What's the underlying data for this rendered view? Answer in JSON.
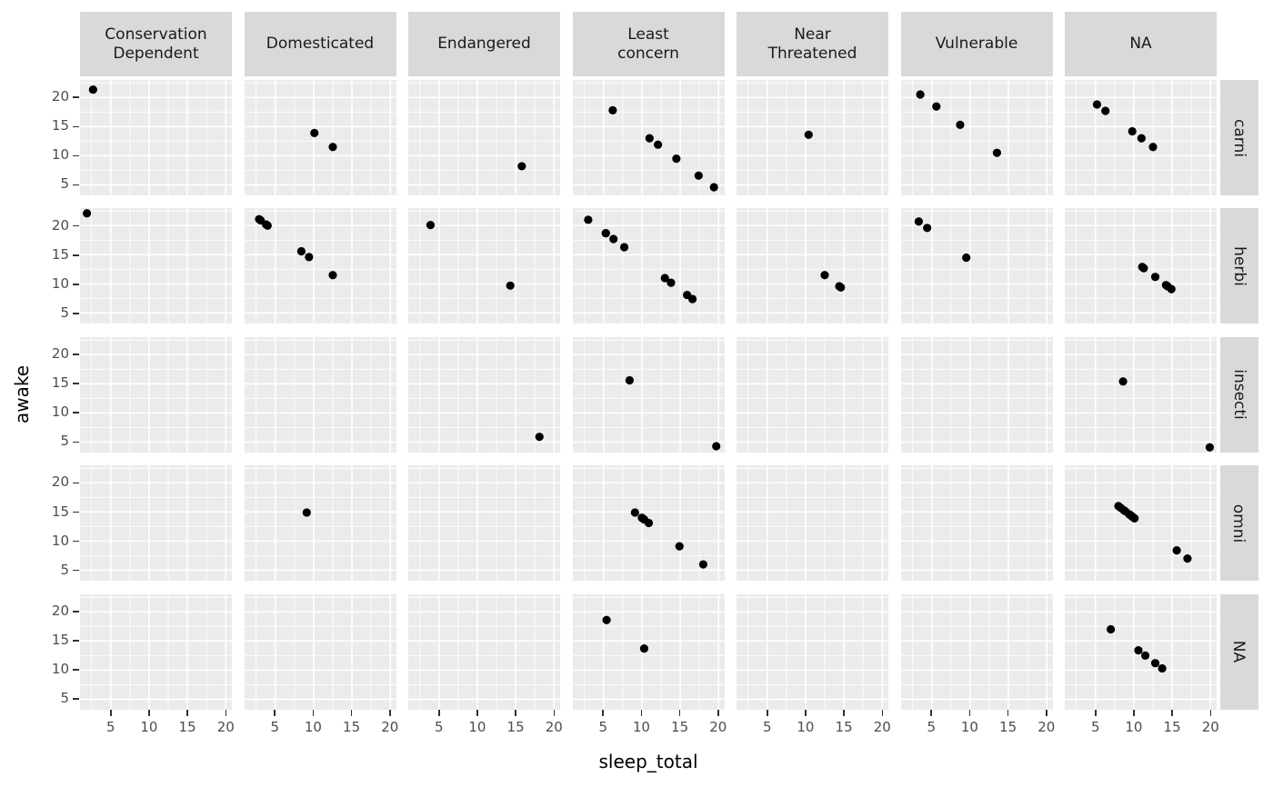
{
  "chart_data": {
    "type": "scatter",
    "title": "",
    "xlabel": "sleep_total",
    "ylabel": "awake",
    "facet": {
      "col_var": "conservation",
      "row_var": "vore"
    },
    "legend": "none",
    "grid": "major-and-minor-white-on-grey",
    "x_ticks": [
      5,
      10,
      15,
      20
    ],
    "y_ticks": [
      5,
      10,
      15,
      20
    ],
    "x_minor": [
      2.5,
      7.5,
      12.5,
      17.5
    ],
    "y_minor": [
      7.5,
      12.5,
      17.5,
      22.5
    ],
    "x_domain": [
      1.0,
      20.8
    ],
    "y_domain": [
      3.2,
      23.0
    ],
    "col_labels": [
      [
        "Conservation",
        "Dependent"
      ],
      [
        "Domesticated"
      ],
      [
        "Endangered"
      ],
      [
        "Least",
        "concern"
      ],
      [
        "Near",
        "Threatened"
      ],
      [
        "Vulnerable"
      ],
      [
        "NA"
      ]
    ],
    "row_labels": [
      "carni",
      "herbi",
      "insecti",
      "omni",
      "NA"
    ],
    "panels": [
      {
        "row": "carni",
        "col": "Conservation Dependent",
        "points": [
          [
            2.7,
            21.35
          ]
        ]
      },
      {
        "row": "carni",
        "col": "Domesticated",
        "points": [
          [
            10.1,
            13.9
          ],
          [
            12.5,
            11.5
          ]
        ]
      },
      {
        "row": "carni",
        "col": "Endangered",
        "points": [
          [
            15.8,
            8.2
          ]
        ]
      },
      {
        "row": "carni",
        "col": "Least concern",
        "points": [
          [
            6.2,
            17.8
          ],
          [
            11.0,
            13.0
          ],
          [
            12.1,
            11.9
          ],
          [
            14.5,
            9.5
          ],
          [
            17.4,
            6.6
          ],
          [
            19.4,
            4.6
          ]
        ]
      },
      {
        "row": "carni",
        "col": "Near Threatened",
        "points": [
          [
            10.4,
            13.6
          ]
        ]
      },
      {
        "row": "carni",
        "col": "Vulnerable",
        "points": [
          [
            3.5,
            20.5
          ],
          [
            5.6,
            18.45
          ],
          [
            8.7,
            15.3
          ],
          [
            13.5,
            10.5
          ]
        ]
      },
      {
        "row": "carni",
        "col": "NA",
        "points": [
          [
            5.2,
            18.8
          ],
          [
            6.3,
            17.7
          ],
          [
            9.8,
            14.2
          ],
          [
            11.0,
            13.0
          ],
          [
            12.5,
            11.5
          ]
        ]
      },
      {
        "row": "herbi",
        "col": "Conservation Dependent",
        "points": [
          [
            1.9,
            22.1
          ]
        ]
      },
      {
        "row": "herbi",
        "col": "Domesticated",
        "points": [
          [
            2.9,
            21.1
          ],
          [
            3.1,
            20.9
          ],
          [
            3.8,
            20.2
          ],
          [
            4.0,
            20.0
          ],
          [
            8.4,
            15.6
          ],
          [
            9.4,
            14.6
          ],
          [
            12.5,
            11.5
          ]
        ]
      },
      {
        "row": "herbi",
        "col": "Endangered",
        "points": [
          [
            3.9,
            20.1
          ],
          [
            14.3,
            9.7
          ]
        ]
      },
      {
        "row": "herbi",
        "col": "Least concern",
        "points": [
          [
            3.0,
            21.0
          ],
          [
            5.3,
            18.7
          ],
          [
            5.3,
            18.7
          ],
          [
            6.3,
            17.7
          ],
          [
            7.7,
            16.3
          ],
          [
            13.0,
            11.0
          ],
          [
            13.8,
            10.2
          ],
          [
            15.9,
            8.1
          ],
          [
            16.6,
            7.4
          ]
        ]
      },
      {
        "row": "herbi",
        "col": "Near Threatened",
        "points": [
          [
            12.5,
            11.5
          ],
          [
            14.4,
            9.6
          ],
          [
            14.6,
            9.4
          ]
        ]
      },
      {
        "row": "herbi",
        "col": "Vulnerable",
        "points": [
          [
            3.3,
            20.7
          ],
          [
            4.4,
            19.6
          ],
          [
            9.5,
            14.5
          ]
        ]
      },
      {
        "row": "herbi",
        "col": "NA",
        "points": [
          [
            11.1,
            12.9
          ],
          [
            11.3,
            12.7
          ],
          [
            12.8,
            11.2
          ],
          [
            14.2,
            9.8
          ],
          [
            14.4,
            9.6
          ],
          [
            14.9,
            9.1
          ]
        ]
      },
      {
        "row": "insecti",
        "col": "Conservation Dependent",
        "points": []
      },
      {
        "row": "insecti",
        "col": "Domesticated",
        "points": []
      },
      {
        "row": "insecti",
        "col": "Endangered",
        "points": [
          [
            18.1,
            5.9
          ]
        ]
      },
      {
        "row": "insecti",
        "col": "Least concern",
        "points": [
          [
            8.4,
            15.6
          ],
          [
            19.7,
            4.3
          ]
        ]
      },
      {
        "row": "insecti",
        "col": "Near Threatened",
        "points": []
      },
      {
        "row": "insecti",
        "col": "Vulnerable",
        "points": []
      },
      {
        "row": "insecti",
        "col": "NA",
        "points": [
          [
            8.6,
            15.4
          ],
          [
            19.9,
            4.1
          ]
        ]
      },
      {
        "row": "omni",
        "col": "Conservation Dependent",
        "points": []
      },
      {
        "row": "omni",
        "col": "Domesticated",
        "points": [
          [
            9.1,
            14.9
          ]
        ]
      },
      {
        "row": "omni",
        "col": "Endangered",
        "points": []
      },
      {
        "row": "omni",
        "col": "Least concern",
        "points": [
          [
            9.1,
            14.9
          ],
          [
            10.0,
            14.0
          ],
          [
            10.1,
            13.9
          ],
          [
            10.3,
            13.7
          ],
          [
            10.9,
            13.1
          ],
          [
            14.9,
            9.1
          ],
          [
            18.0,
            6.0
          ]
        ]
      },
      {
        "row": "omni",
        "col": "Near Threatened",
        "points": []
      },
      {
        "row": "omni",
        "col": "Vulnerable",
        "points": []
      },
      {
        "row": "omni",
        "col": "NA",
        "points": [
          [
            8.0,
            16.0
          ],
          [
            8.3,
            15.7
          ],
          [
            8.7,
            15.3
          ],
          [
            8.9,
            15.1
          ],
          [
            9.4,
            14.6
          ],
          [
            9.6,
            14.4
          ],
          [
            9.7,
            14.3
          ],
          [
            9.8,
            14.2
          ],
          [
            10.1,
            13.9
          ],
          [
            15.6,
            8.4
          ],
          [
            17.0,
            7.0
          ]
        ]
      },
      {
        "row": "NA",
        "col": "Conservation Dependent",
        "points": []
      },
      {
        "row": "NA",
        "col": "Domesticated",
        "points": []
      },
      {
        "row": "NA",
        "col": "Endangered",
        "points": []
      },
      {
        "row": "NA",
        "col": "Least concern",
        "points": [
          [
            5.4,
            18.6
          ],
          [
            10.3,
            13.7
          ]
        ]
      },
      {
        "row": "NA",
        "col": "Near Threatened",
        "points": []
      },
      {
        "row": "NA",
        "col": "Vulnerable",
        "points": []
      },
      {
        "row": "NA",
        "col": "NA",
        "points": [
          [
            7.0,
            17.0
          ],
          [
            10.6,
            13.4
          ],
          [
            11.5,
            12.5
          ],
          [
            12.8,
            11.2
          ],
          [
            13.7,
            10.3
          ]
        ]
      }
    ]
  },
  "colors": {
    "background": "#FFFFFF",
    "panel_bg": "#EBEBEB",
    "strip_bg": "#D9D9D9",
    "grid": "#FFFFFF",
    "point": "#000000",
    "tick_label": "#4D4D4D",
    "tick_mark": "#333333",
    "strip_text": "#1A1A1A",
    "axis_title": "#000000"
  }
}
